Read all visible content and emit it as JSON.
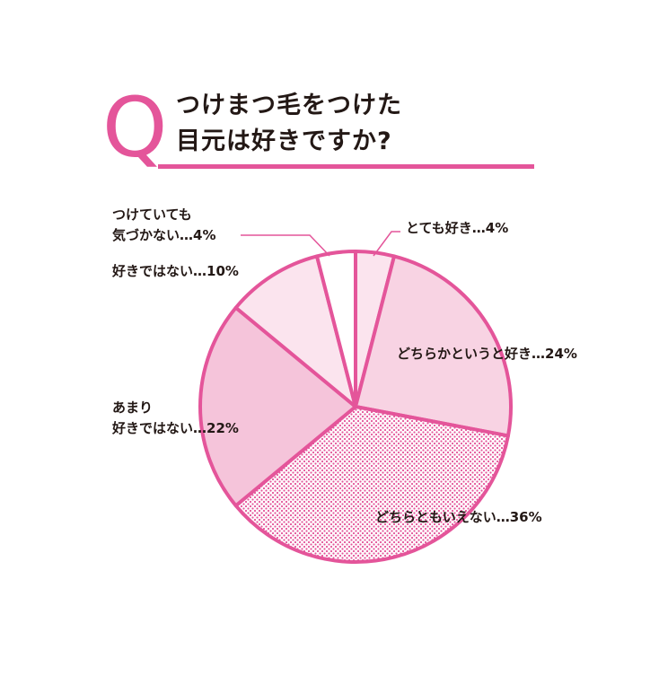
{
  "question": {
    "mark": "Q",
    "line1": "つけまつ毛をつけた",
    "line2": "目元は好きですか?"
  },
  "colors": {
    "accent": "#e4559a",
    "light": "#fbe4ee",
    "mid": "#f8d3e3",
    "dark": "#f5c4da",
    "dots": "#e4559a",
    "white": "#ffffff"
  },
  "chart_data": {
    "type": "pie",
    "title": "つけまつ毛をつけた目元は好きですか?",
    "slices": [
      {
        "label": "とても好き",
        "value": 4,
        "label_text": "とても好き…4%",
        "fill": "light"
      },
      {
        "label": "どちらかというと好き",
        "value": 24,
        "label_text": "どちらかというと好き…24%",
        "fill": "mid"
      },
      {
        "label": "どちらともいえない",
        "value": 36,
        "label_text": "どちらともいえない…36%",
        "fill": "dots"
      },
      {
        "label": "あまり好きではない",
        "value": 22,
        "label_text_1": "あまり",
        "label_text_2": "好きではない…22%",
        "fill": "dark"
      },
      {
        "label": "好きではない",
        "value": 10,
        "label_text": "好きではない…10%",
        "fill": "light"
      },
      {
        "label": "つけていても気づかない",
        "value": 4,
        "label_text_1": "つけていても",
        "label_text_2": "気づかない…4%",
        "fill": "white"
      }
    ]
  }
}
